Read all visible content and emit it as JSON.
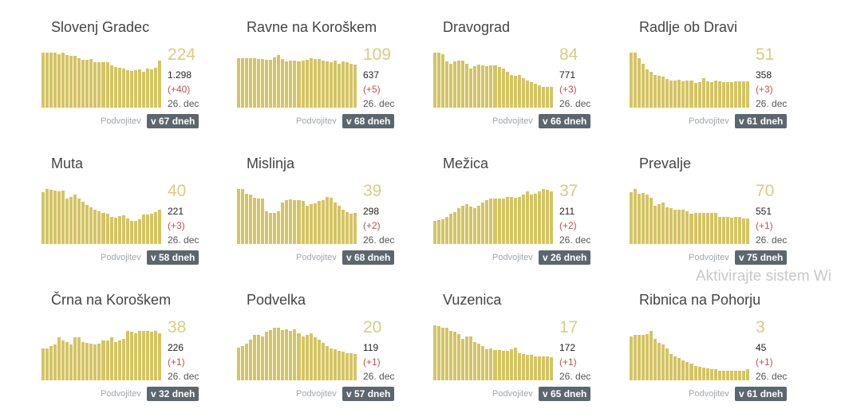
{
  "double_label": "Podvojitev",
  "watermark": "Aktivirajte sistem Wi",
  "colors": {
    "bar": "#d4c463",
    "number": "#dccb7f",
    "change": "#c0504d",
    "badge": "#5c666e"
  },
  "cards": [
    {
      "name": "Slovenj Gradec",
      "active": "224",
      "total": "1.298",
      "change": "(+40)",
      "date": "26. dec",
      "doubling": "v 67 dneh",
      "bars": [
        100,
        100,
        100,
        100,
        97,
        100,
        96,
        94,
        94,
        90,
        87,
        87,
        88,
        82,
        82,
        82,
        82,
        77,
        74,
        73,
        71,
        68,
        67,
        68,
        69,
        65,
        71,
        70,
        72,
        86
      ]
    },
    {
      "name": "Ravne na Koroškem",
      "active": "109",
      "total": "637",
      "change": "(+5)",
      "date": "26. dec",
      "doubling": "v 68 dneh",
      "bars": [
        90,
        90,
        90,
        90,
        90,
        88,
        89,
        87,
        87,
        91,
        96,
        88,
        84,
        85,
        86,
        84,
        85,
        87,
        90,
        89,
        88,
        86,
        84,
        82,
        85,
        80,
        84,
        82,
        80,
        78
      ]
    },
    {
      "name": "Dravograd",
      "active": "84",
      "total": "771",
      "change": "(+3)",
      "date": "26. dec",
      "doubling": "v 66 dneh",
      "bars": [
        100,
        100,
        97,
        84,
        80,
        84,
        85,
        85,
        80,
        71,
        76,
        78,
        77,
        76,
        77,
        77,
        74,
        71,
        65,
        60,
        58,
        59,
        54,
        50,
        46,
        43,
        41,
        38,
        38,
        37
      ]
    },
    {
      "name": "Radlje ob Dravi",
      "active": "51",
      "total": "358",
      "change": "(+3)",
      "date": "26. dec",
      "doubling": "v 61 dneh",
      "bars": [
        100,
        100,
        90,
        80,
        70,
        65,
        60,
        58,
        57,
        52,
        49,
        50,
        51,
        48,
        49,
        50,
        45,
        46,
        53,
        48,
        47,
        49,
        48,
        47,
        47,
        47,
        48,
        48,
        48,
        48
      ]
    },
    {
      "name": "Muta",
      "active": "40",
      "total": "221",
      "change": "(+3)",
      "date": "26. dec",
      "doubling": "v 58 dneh",
      "bars": [
        94,
        100,
        99,
        97,
        95,
        97,
        83,
        86,
        90,
        82,
        77,
        71,
        66,
        62,
        60,
        57,
        55,
        50,
        48,
        51,
        52,
        47,
        42,
        42,
        45,
        53,
        54,
        55,
        58,
        62
      ]
    },
    {
      "name": "Mislinja",
      "active": "39",
      "total": "298",
      "change": "(+2)",
      "date": "26. dec",
      "doubling": "v 68 dneh",
      "bars": [
        100,
        100,
        92,
        90,
        84,
        82,
        82,
        60,
        57,
        56,
        60,
        76,
        80,
        81,
        80,
        80,
        78,
        70,
        72,
        74,
        78,
        80,
        86,
        84,
        75,
        70,
        62,
        58,
        55,
        56
      ]
    },
    {
      "name": "Mežica",
      "active": "37",
      "total": "211",
      "change": "(+2)",
      "date": "26. dec",
      "doubling": "v 26 dneh",
      "bars": [
        42,
        44,
        45,
        50,
        55,
        58,
        65,
        70,
        72,
        68,
        65,
        70,
        75,
        80,
        82,
        83,
        82,
        82,
        85,
        85,
        84,
        86,
        90,
        95,
        90,
        92,
        95,
        100,
        98,
        95
      ]
    },
    {
      "name": "Prevalje",
      "active": "70",
      "total": "551",
      "change": "(+1)",
      "date": "26. dec",
      "doubling": "v 75 dneh",
      "bars": [
        94,
        100,
        92,
        93,
        90,
        84,
        70,
        72,
        76,
        67,
        65,
        63,
        62,
        62,
        60,
        55,
        57,
        57,
        57,
        57,
        57,
        56,
        50,
        50,
        49,
        48,
        49,
        49,
        47,
        46
      ]
    },
    {
      "name": "Črna na Koroškem",
      "active": "38",
      "total": "226",
      "change": "(+1)",
      "date": "26. dec",
      "doubling": "v 32 dneh",
      "bars": [
        58,
        58,
        62,
        65,
        78,
        72,
        70,
        65,
        78,
        78,
        70,
        68,
        66,
        65,
        66,
        72,
        72,
        78,
        70,
        72,
        75,
        90,
        88,
        86,
        90,
        90,
        90,
        88,
        90,
        86
      ]
    },
    {
      "name": "Podvelka",
      "active": "20",
      "total": "119",
      "change": "(+1)",
      "date": "26. dec",
      "doubling": "v 57 dneh",
      "bars": [
        60,
        62,
        66,
        74,
        82,
        82,
        80,
        88,
        92,
        95,
        96,
        92,
        93,
        90,
        93,
        86,
        80,
        82,
        85,
        78,
        74,
        68,
        62,
        58,
        56,
        54,
        52,
        50,
        49,
        48
      ]
    },
    {
      "name": "Vuzenica",
      "active": "17",
      "total": "172",
      "change": "(+1)",
      "date": "26. dec",
      "doubling": "v 65 dneh",
      "bars": [
        100,
        98,
        96,
        96,
        90,
        88,
        84,
        75,
        80,
        80,
        70,
        66,
        62,
        57,
        58,
        55,
        55,
        54,
        53,
        56,
        60,
        50,
        48,
        47,
        46,
        44,
        43,
        43,
        44,
        42
      ]
    },
    {
      "name": "Ribnica na Pohorju",
      "active": "3",
      "total": "45",
      "change": "(+1)",
      "date": "26. dec",
      "doubling": "v 61 dneh",
      "bars": [
        80,
        82,
        82,
        82,
        84,
        90,
        75,
        68,
        65,
        58,
        48,
        44,
        40,
        36,
        33,
        30,
        26,
        24,
        23,
        22,
        20,
        20,
        18,
        18,
        18,
        17,
        17,
        17,
        18,
        20
      ]
    }
  ]
}
